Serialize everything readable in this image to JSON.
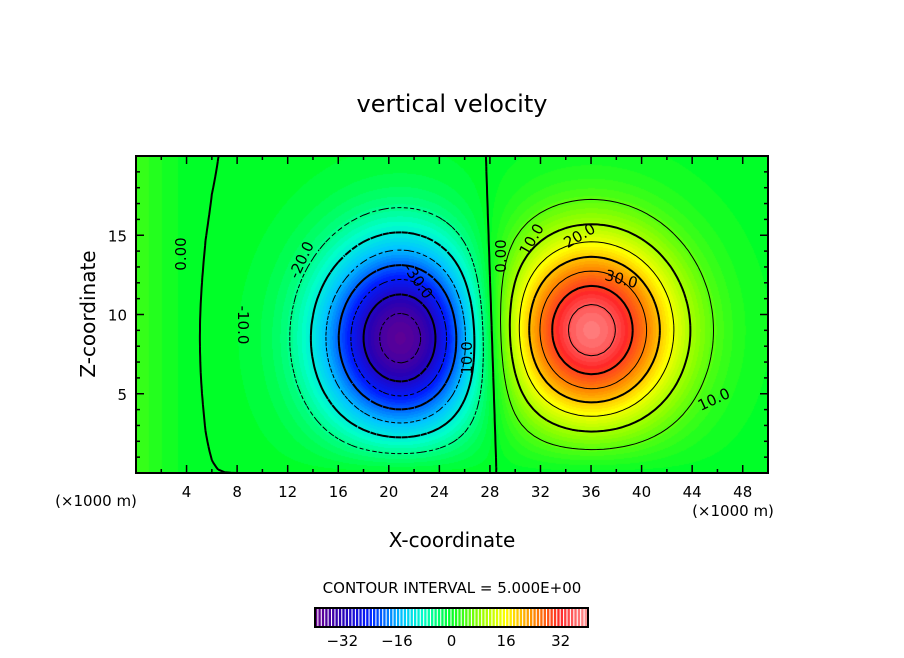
{
  "chart_data": {
    "type": "heatmap",
    "title": "vertical velocity",
    "xlabel": "X-coordinate",
    "ylabel": "Z-coordinate",
    "x_unit": "(×1000 m)",
    "y_unit": "(×1000 m)",
    "xlim": [
      0,
      50
    ],
    "ylim": [
      0,
      20
    ],
    "x_ticks": [
      4,
      8,
      12,
      16,
      20,
      24,
      28,
      32,
      36,
      40,
      44,
      48
    ],
    "y_ticks": [
      5,
      10,
      15
    ],
    "contour_interval_label": "CONTOUR INTERVAL = 5.000E+00",
    "contour_interval": 5,
    "contour_labels": [
      "0.00",
      "-10.0",
      "-20.0",
      "-30.0",
      "10.0",
      "0.00",
      "10.0",
      "20.0",
      "30.0",
      "10.0",
      "-10.0"
    ],
    "colorbar": {
      "range": [
        -40,
        40
      ],
      "ticks": [
        -32,
        -16,
        0,
        16,
        32
      ]
    },
    "field_features": [
      {
        "name": "downdraft",
        "x": 21,
        "z": 8.5,
        "value": -38
      },
      {
        "name": "updraft",
        "x": 36,
        "z": 9,
        "value": 38
      }
    ]
  }
}
